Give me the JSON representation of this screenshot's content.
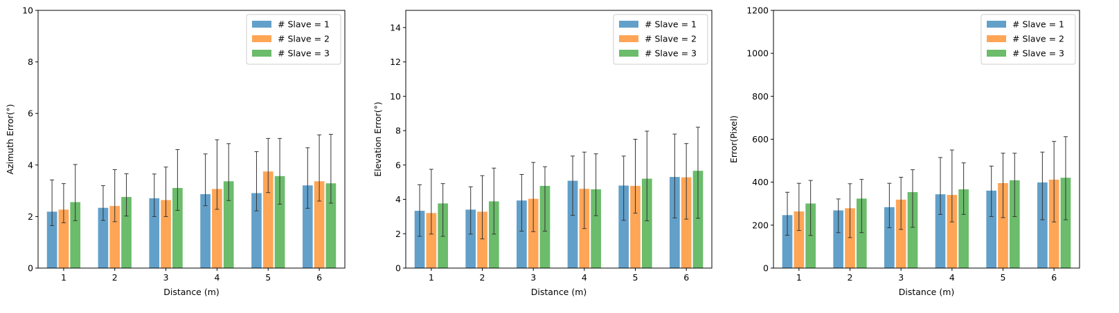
{
  "colors": {
    "series": [
      "#1f77b4",
      "#ff7f0e",
      "#2ca02c"
    ],
    "errorbar": "#333333"
  },
  "chart_data": [
    {
      "type": "bar",
      "xlabel": "Distance (m)",
      "ylabel": "Azimuth Error(°)",
      "categories": [
        "1",
        "2",
        "3",
        "4",
        "5",
        "6"
      ],
      "ylim": [
        0,
        10
      ],
      "yticks": [
        0,
        2,
        4,
        6,
        8,
        10
      ],
      "legend": "top-right",
      "series": [
        {
          "name": "# Slave = 1",
          "values": [
            2.2,
            2.35,
            2.72,
            2.88,
            2.92,
            3.22
          ],
          "err_low": [
            1.65,
            1.85,
            2.0,
            2.42,
            2.22,
            2.32
          ],
          "err_high": [
            3.42,
            3.2,
            3.65,
            4.43,
            4.52,
            4.67
          ]
        },
        {
          "name": "# Slave = 2",
          "values": [
            2.28,
            2.42,
            2.65,
            3.08,
            3.76,
            3.38
          ],
          "err_low": [
            1.76,
            1.8,
            2.0,
            2.28,
            2.93,
            2.6
          ],
          "err_high": [
            3.28,
            3.82,
            3.92,
            4.98,
            5.03,
            5.17
          ]
        },
        {
          "name": "# Slave = 3",
          "values": [
            2.57,
            2.77,
            3.12,
            3.38,
            3.58,
            3.3
          ],
          "err_low": [
            1.84,
            2.02,
            2.24,
            2.62,
            2.48,
            2.52
          ],
          "err_high": [
            4.02,
            3.66,
            4.6,
            4.83,
            5.03,
            5.19
          ]
        }
      ]
    },
    {
      "type": "bar",
      "xlabel": "Distance (m)",
      "ylabel": "Elevation Error(°)",
      "categories": [
        "1",
        "2",
        "3",
        "4",
        "5",
        "6"
      ],
      "ylim": [
        0,
        15
      ],
      "yticks": [
        0,
        2,
        4,
        6,
        8,
        10,
        12,
        14
      ],
      "legend": "top-right",
      "series": [
        {
          "name": "# Slave = 1",
          "values": [
            3.35,
            3.42,
            3.95,
            5.1,
            4.82,
            5.32
          ],
          "err_low": [
            1.85,
            1.98,
            2.15,
            3.07,
            2.78,
            2.92
          ],
          "err_high": [
            4.85,
            4.73,
            5.45,
            6.52,
            6.52,
            7.8
          ]
        },
        {
          "name": "# Slave = 2",
          "values": [
            3.22,
            3.3,
            4.05,
            4.63,
            4.8,
            5.3
          ],
          "err_low": [
            1.98,
            1.7,
            2.12,
            2.3,
            3.2,
            2.85
          ],
          "err_high": [
            5.75,
            5.38,
            6.15,
            6.75,
            7.5,
            7.25
          ]
        },
        {
          "name": "# Slave = 3",
          "values": [
            3.78,
            3.9,
            4.8,
            4.6,
            5.22,
            5.68
          ],
          "err_low": [
            1.85,
            1.98,
            2.15,
            3.05,
            2.75,
            2.9
          ],
          "err_high": [
            4.92,
            5.82,
            5.9,
            6.65,
            7.97,
            8.2
          ]
        }
      ]
    },
    {
      "type": "bar",
      "xlabel": "Distance (m)",
      "ylabel": "Error(Pixel)",
      "categories": [
        "1",
        "2",
        "3",
        "4",
        "5",
        "6"
      ],
      "ylim": [
        0,
        1200
      ],
      "yticks": [
        0,
        200,
        400,
        600,
        800,
        1000,
        1200
      ],
      "legend": "top-right",
      "series": [
        {
          "name": "# Slave = 1",
          "values": [
            248,
            270,
            285,
            345,
            362,
            400
          ],
          "err_low": [
            153,
            165,
            188,
            250,
            240,
            225
          ],
          "err_high": [
            353,
            322,
            395,
            515,
            475,
            540
          ]
        },
        {
          "name": "# Slave = 2",
          "values": [
            265,
            280,
            320,
            342,
            397,
            413
          ],
          "err_low": [
            175,
            142,
            180,
            215,
            235,
            215
          ],
          "err_high": [
            395,
            393,
            423,
            550,
            535,
            590
          ]
        },
        {
          "name": "# Slave = 3",
          "values": [
            302,
            325,
            355,
            368,
            410,
            422
          ],
          "err_low": [
            152,
            165,
            190,
            250,
            240,
            225
          ],
          "err_high": [
            408,
            413,
            458,
            490,
            535,
            612
          ]
        }
      ]
    }
  ]
}
